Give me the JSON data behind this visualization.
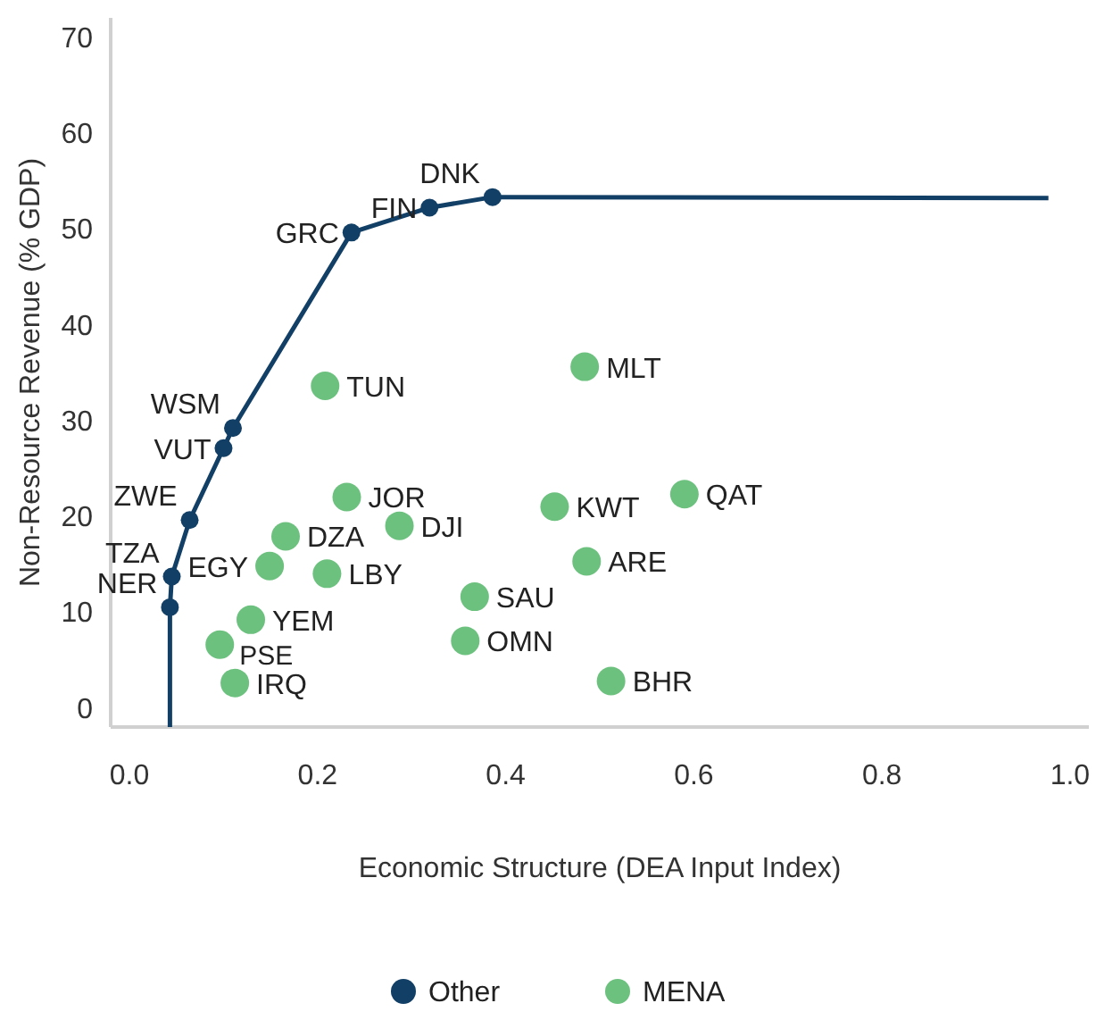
{
  "chart_data": {
    "type": "scatter",
    "xlabel": "Economic Structure (DEA Input Index)",
    "ylabel": "Non-Resource Revenue (% GDP)",
    "xlim": [
      -0.02,
      1.02
    ],
    "ylim": [
      -2,
      72
    ],
    "xticks": [
      {
        "value": 0,
        "label": "0.0"
      },
      {
        "value": 0.2,
        "label": "0.2"
      },
      {
        "value": 0.4,
        "label": "0.4"
      },
      {
        "value": 0.6,
        "label": "0.6"
      },
      {
        "value": 0.8,
        "label": "0.8"
      },
      {
        "value": 1,
        "label": "1.0"
      }
    ],
    "yticks": [
      0,
      10,
      20,
      30,
      40,
      50,
      60,
      70
    ],
    "grid": false,
    "legend": "bottom",
    "series": [
      {
        "name": "Other",
        "type": "line",
        "marker": "circle",
        "color": "#123f66",
        "x": [
          0.043,
          0.043,
          0.045,
          0.064,
          0.1,
          0.11,
          0.236,
          0.319,
          0.386,
          0.977
        ],
        "values": [
          -2,
          10.5,
          13.7,
          19.6,
          27.1,
          29.2,
          49.6,
          52.2,
          53.3,
          53.2
        ]
      },
      {
        "name": "MENA",
        "marker": "circle",
        "color": "#6cc17e",
        "x": [
          0.208,
          0.231,
          0.287,
          0.166,
          0.149,
          0.21,
          0.129,
          0.096,
          0.112,
          0.367,
          0.357,
          0.484,
          0.452,
          0.59,
          0.486,
          0.512
        ],
        "values": [
          33.6,
          22.0,
          19.0,
          17.9,
          14.8,
          14.0,
          9.2,
          6.6,
          2.6,
          11.6,
          7.0,
          35.6,
          21.0,
          22.3,
          15.3,
          2.8
        ]
      }
    ],
    "annotations": [
      {
        "text": "NER",
        "x": 0.043,
        "y": 10.5
      },
      {
        "text": "TZA",
        "x": 0.045,
        "y": 13.7
      },
      {
        "text": "ZWE",
        "x": 0.064,
        "y": 19.6
      },
      {
        "text": "VUT",
        "x": 0.1,
        "y": 27.1
      },
      {
        "text": "WSM",
        "x": 0.11,
        "y": 29.2
      },
      {
        "text": "GRC",
        "x": 0.236,
        "y": 49.6
      },
      {
        "text": "FIN",
        "x": 0.319,
        "y": 52.2
      },
      {
        "text": "DNK",
        "x": 0.386,
        "y": 53.3
      },
      {
        "text": "TUN",
        "x": 0.208,
        "y": 33.6
      },
      {
        "text": "JOR",
        "x": 0.231,
        "y": 22.0
      },
      {
        "text": "DJI",
        "x": 0.287,
        "y": 19.0
      },
      {
        "text": "DZA",
        "x": 0.166,
        "y": 17.9
      },
      {
        "text": "EGY",
        "x": 0.149,
        "y": 14.8
      },
      {
        "text": "LBY",
        "x": 0.21,
        "y": 14.0
      },
      {
        "text": "YEM",
        "x": 0.129,
        "y": 9.2
      },
      {
        "text": "PSE",
        "x": 0.096,
        "y": 6.6
      },
      {
        "text": "IRQ",
        "x": 0.112,
        "y": 2.6
      },
      {
        "text": "SAU",
        "x": 0.367,
        "y": 11.6
      },
      {
        "text": "OMN",
        "x": 0.357,
        "y": 7.0
      },
      {
        "text": "MLT",
        "x": 0.484,
        "y": 35.6
      },
      {
        "text": "KWT",
        "x": 0.452,
        "y": 21.0
      },
      {
        "text": "QAT",
        "x": 0.59,
        "y": 22.3
      },
      {
        "text": "ARE",
        "x": 0.486,
        "y": 15.3
      },
      {
        "text": "BHR",
        "x": 0.512,
        "y": 2.8
      }
    ]
  }
}
